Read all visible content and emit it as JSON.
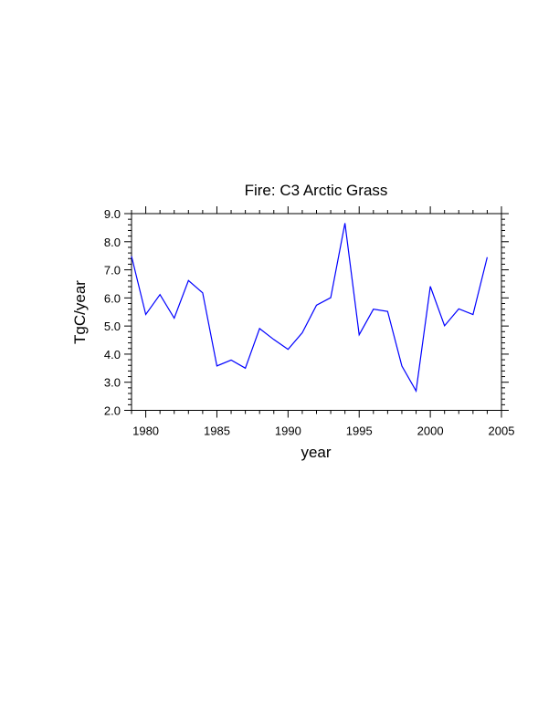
{
  "chart_data": {
    "type": "line",
    "title": "Fire: C3 Arctic Grass",
    "xlabel": "year",
    "ylabel": "TgC/year",
    "xlim": [
      1979,
      2005
    ],
    "ylim": [
      2.0,
      9.0
    ],
    "xticks": [
      1980,
      1985,
      1990,
      1995,
      2000,
      2005
    ],
    "xtick_labels": [
      "1980",
      "1985",
      "1990",
      "1995",
      "2000",
      "2005"
    ],
    "yticks": [
      2.0,
      3.0,
      4.0,
      5.0,
      6.0,
      7.0,
      8.0,
      9.0
    ],
    "ytick_labels": [
      "2.0",
      "3.0",
      "4.0",
      "5.0",
      "6.0",
      "7.0",
      "8.0",
      "9.0"
    ],
    "grid": false,
    "series": [
      {
        "name": "Fire C3 Arctic Grass",
        "color": "#0000ff",
        "x": [
          1979,
          1980,
          1981,
          1982,
          1983,
          1984,
          1985,
          1986,
          1987,
          1988,
          1989,
          1990,
          1991,
          1992,
          1993,
          1994,
          1995,
          1996,
          1997,
          1998,
          1999,
          2000,
          2001,
          2002,
          2003,
          2004
        ],
        "y": [
          7.48,
          5.41,
          6.12,
          5.28,
          6.62,
          6.18,
          3.58,
          3.79,
          3.5,
          4.91,
          4.52,
          4.17,
          4.76,
          5.74,
          6.01,
          8.66,
          4.69,
          5.6,
          5.52,
          3.58,
          2.69,
          6.41,
          5.01,
          5.61,
          5.41,
          7.45
        ]
      }
    ]
  }
}
